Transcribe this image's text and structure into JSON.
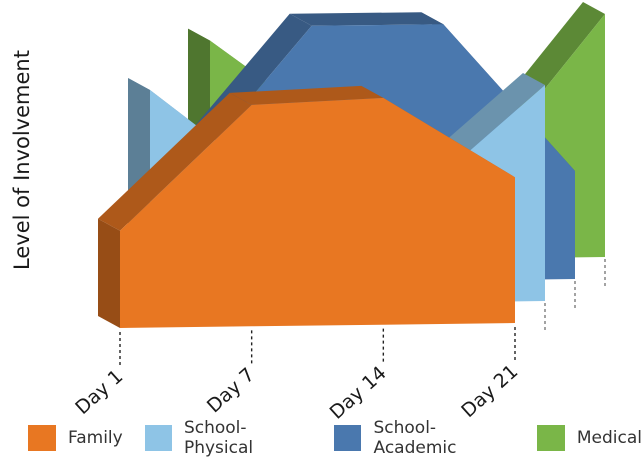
{
  "chart_data": {
    "type": "area",
    "style": "3d-ribbon",
    "xlabel": "",
    "ylabel": "Level of Involvement",
    "categories": [
      "Day 1",
      "Day 7",
      "Day 14",
      "Day 21"
    ],
    "legend_position": "bottom",
    "grid": false,
    "y_ticks_shown": false,
    "series": [
      {
        "name": "Family",
        "color": "#E87722",
        "values": [
          0.36,
          0.82,
          0.84,
          0.54
        ]
      },
      {
        "name": "School-Physical",
        "color": "#8EC4E6",
        "values": [
          0.8,
          0.42,
          0.38,
          0.8
        ]
      },
      {
        "name": "School-Academic",
        "color": "#4A78AE",
        "values": [
          0.38,
          0.95,
          0.95,
          0.4
        ]
      },
      {
        "name": "Medical",
        "color": "#7AB648",
        "values": [
          0.82,
          0.46,
          0.3,
          0.9
        ]
      }
    ]
  }
}
